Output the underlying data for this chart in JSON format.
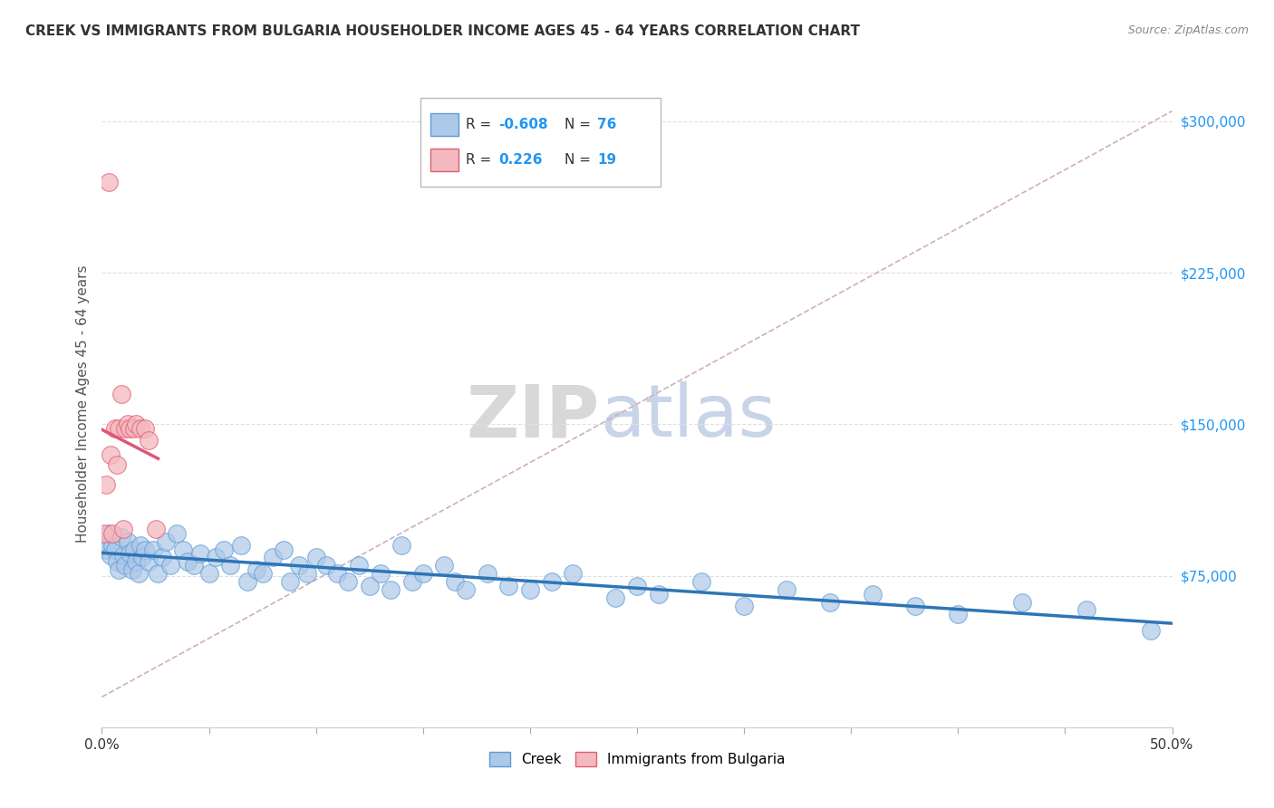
{
  "title": "CREEK VS IMMIGRANTS FROM BULGARIA HOUSEHOLDER INCOME AGES 45 - 64 YEARS CORRELATION CHART",
  "source": "Source: ZipAtlas.com",
  "ylabel": "Householder Income Ages 45 - 64 years",
  "ytick_vals": [
    75000,
    150000,
    225000,
    300000
  ],
  "ytick_labels": [
    "$75,000",
    "$150,000",
    "$225,000",
    "$300,000"
  ],
  "creek_R": "-0.608",
  "creek_N": "76",
  "bulgaria_R": "0.226",
  "bulgaria_N": "19",
  "creek_color": "#adc8e8",
  "creek_edge_color": "#5b9bd5",
  "creek_line_color": "#2e75b6",
  "bulgaria_color": "#f4b8c0",
  "bulgaria_edge_color": "#e06070",
  "bulgaria_line_color": "#e05575",
  "ref_line_color": "#d0b0b8",
  "watermark_zip_color": "#d8d8d8",
  "watermark_atlas_color": "#c8d4e8",
  "xmin": 0.0,
  "xmax": 0.5,
  "ymin": 0,
  "ymax": 320000,
  "creek_x": [
    0.001,
    0.002,
    0.003,
    0.004,
    0.005,
    0.006,
    0.007,
    0.008,
    0.009,
    0.01,
    0.011,
    0.012,
    0.013,
    0.014,
    0.015,
    0.016,
    0.017,
    0.018,
    0.019,
    0.02,
    0.022,
    0.024,
    0.026,
    0.028,
    0.03,
    0.032,
    0.035,
    0.038,
    0.04,
    0.043,
    0.046,
    0.05,
    0.053,
    0.057,
    0.06,
    0.065,
    0.068,
    0.072,
    0.075,
    0.08,
    0.085,
    0.088,
    0.092,
    0.096,
    0.1,
    0.105,
    0.11,
    0.115,
    0.12,
    0.125,
    0.13,
    0.135,
    0.14,
    0.145,
    0.15,
    0.16,
    0.165,
    0.17,
    0.18,
    0.19,
    0.2,
    0.21,
    0.22,
    0.24,
    0.25,
    0.26,
    0.28,
    0.3,
    0.32,
    0.34,
    0.36,
    0.38,
    0.4,
    0.43,
    0.46,
    0.49
  ],
  "creek_y": [
    92000,
    88000,
    96000,
    85000,
    90000,
    88000,
    82000,
    78000,
    94000,
    85000,
    80000,
    92000,
    86000,
    78000,
    88000,
    82000,
    76000,
    90000,
    84000,
    88000,
    82000,
    88000,
    76000,
    84000,
    92000,
    80000,
    96000,
    88000,
    82000,
    80000,
    86000,
    76000,
    84000,
    88000,
    80000,
    90000,
    72000,
    78000,
    76000,
    84000,
    88000,
    72000,
    80000,
    76000,
    84000,
    80000,
    76000,
    72000,
    80000,
    70000,
    76000,
    68000,
    90000,
    72000,
    76000,
    80000,
    72000,
    68000,
    76000,
    70000,
    68000,
    72000,
    76000,
    64000,
    70000,
    66000,
    72000,
    60000,
    68000,
    62000,
    66000,
    60000,
    56000,
    62000,
    58000,
    48000
  ],
  "bulgaria_x": [
    0.001,
    0.002,
    0.003,
    0.004,
    0.005,
    0.006,
    0.007,
    0.008,
    0.009,
    0.01,
    0.011,
    0.012,
    0.013,
    0.015,
    0.016,
    0.018,
    0.02,
    0.022,
    0.025
  ],
  "bulgaria_y": [
    96000,
    120000,
    270000,
    135000,
    96000,
    148000,
    130000,
    148000,
    165000,
    98000,
    148000,
    150000,
    148000,
    148000,
    150000,
    148000,
    148000,
    142000,
    98000
  ]
}
